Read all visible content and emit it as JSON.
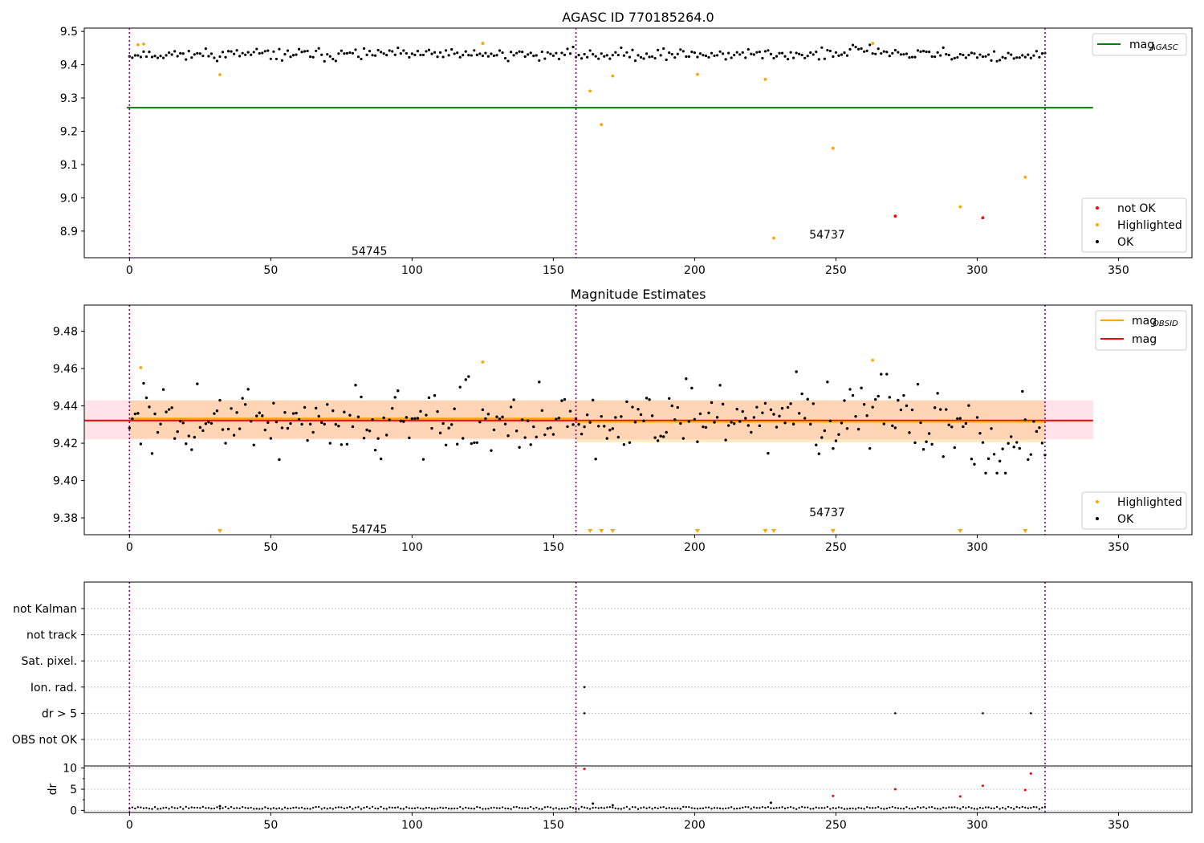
{
  "chart_data": [
    {
      "type": "scatter",
      "title": "AGASC ID 770185264.0",
      "xlim": [
        -16,
        376
      ],
      "ylim": [
        8.82,
        9.51
      ],
      "x_ticks": [
        0,
        50,
        100,
        150,
        200,
        250,
        300,
        350
      ],
      "y_ticks": [
        8.9,
        9.0,
        9.1,
        9.2,
        9.3,
        9.4,
        9.5
      ],
      "obsid_boundaries": [
        0,
        158,
        324
      ],
      "obsid_labels": [
        {
          "text": "54745",
          "x": 78,
          "y": 8.84
        },
        {
          "text": "54737",
          "x": 240,
          "y": 8.89
        }
      ],
      "lines": [
        {
          "name": "mag",
          "sub": "AGASC",
          "y": 9.271,
          "x_range": [
            0,
            341
          ],
          "color": "#008000"
        }
      ],
      "legend": {
        "placement": "upper-right (line) / lower-right (points)",
        "entries": [
          {
            "label": "not OK",
            "color": "#ff0000"
          },
          {
            "label": "Highlighted",
            "color": "#ffa500"
          },
          {
            "label": "OK",
            "color": "#000000"
          }
        ]
      },
      "series": [
        {
          "name": "Highlighted",
          "color": "#ffa500",
          "points": [
            [
              3,
              9.46
            ],
            [
              5,
              9.462
            ],
            [
              32,
              9.37
            ],
            [
              125,
              9.464
            ],
            [
              163,
              9.321
            ],
            [
              167,
              9.22
            ],
            [
              171,
              9.366
            ],
            [
              201,
              9.371
            ],
            [
              225,
              9.356
            ],
            [
              228,
              8.879
            ],
            [
              249,
              9.149
            ],
            [
              263,
              9.464
            ],
            [
              294,
              8.973
            ],
            [
              317,
              9.062
            ]
          ]
        },
        {
          "name": "not OK",
          "color": "#ff0000",
          "points": [
            [
              271,
              8.945
            ],
            [
              302,
              8.94
            ]
          ]
        }
      ],
      "ok_series_note": "about 320 OK points clustered around 9.43 (range ~9.41–9.46)"
    },
    {
      "type": "scatter",
      "title": "Magnitude Estimates",
      "xlim": [
        -16,
        376
      ],
      "ylim": [
        9.371,
        9.494
      ],
      "x_ticks": [
        0,
        50,
        100,
        150,
        200,
        250,
        300,
        350
      ],
      "y_ticks": [
        9.38,
        9.4,
        9.42,
        9.44,
        9.46,
        9.48
      ],
      "obsid_boundaries": [
        0,
        158,
        324
      ],
      "obsid_labels": [
        {
          "text": "54745",
          "x": 78,
          "y": 9.374
        },
        {
          "text": "54737",
          "x": 240,
          "y": 9.383
        }
      ],
      "lines": [
        {
          "name": "mag",
          "sub": "OBSID",
          "color": "#ffa500",
          "segments": [
            {
              "x": [
                0,
                158
              ],
              "y": 9.4332
            },
            {
              "x": [
                158,
                324
              ],
              "y": 9.4315
            }
          ]
        },
        {
          "name": "mag",
          "sub": "",
          "color": "#ff0000",
          "segments": [
            {
              "x": [
                -16,
                341
              ],
              "y": 9.4322
            }
          ]
        }
      ],
      "bands": [
        {
          "color": "#ffc0cb",
          "x": [
            -16,
            341
          ],
          "y": [
            9.422,
            9.443
          ]
        },
        {
          "color": "#ffa500",
          "x": [
            0,
            158
          ],
          "y": [
            9.4225,
            9.443
          ]
        },
        {
          "color": "#ffa500",
          "x": [
            158,
            324
          ],
          "y": [
            9.4205,
            9.443
          ]
        }
      ],
      "legend": {
        "placement": "upper-right (lines) / lower-right (points)",
        "entries": [
          {
            "label": "Highlighted",
            "color": "#ffa500"
          },
          {
            "label": "OK",
            "color": "#000000"
          }
        ]
      },
      "series": [
        {
          "name": "Highlighted",
          "color": "#ffa500",
          "points": [
            [
              4,
              9.4605
            ],
            [
              125,
              9.4635
            ],
            [
              263,
              9.4645
            ]
          ]
        },
        {
          "name": "Highlighted (below axis)",
          "color": "#ffa500",
          "marker": "triangle-down",
          "x": [
            32,
            163,
            167,
            171,
            201,
            225,
            228,
            249,
            294,
            317
          ]
        }
      ],
      "ok_series_note": "about 320 OK points scattered between ~9.405 and ~9.458"
    },
    {
      "type": "scatter",
      "title": "",
      "xlim": [
        -16,
        376
      ],
      "x_ticks": [
        0,
        50,
        100,
        150,
        200,
        250,
        300,
        350
      ],
      "obsid_boundaries": [
        0,
        158,
        324
      ],
      "flag_categories": [
        "not Kalman",
        "not track",
        "Sat. pixel.",
        "Ion. rad.",
        "dr > 5",
        "OBS not OK"
      ],
      "flag_points": [
        {
          "category": "Ion. rad.",
          "x": [
            161
          ]
        },
        {
          "category": "dr > 5",
          "x": [
            161,
            271,
            302,
            319
          ]
        }
      ],
      "dr_axis": {
        "ylabel": "dr",
        "ylim": [
          -0.5,
          10.5
        ],
        "y_ticks": [
          0,
          5,
          10
        ]
      },
      "dr_outliers": [
        {
          "x": 161,
          "y": 9.8,
          "color": "#ff0000"
        },
        {
          "x": 249,
          "y": 3.4,
          "color": "#ff0000"
        },
        {
          "x": 271,
          "y": 5.0,
          "color": "#ff0000"
        },
        {
          "x": 294,
          "y": 3.3,
          "color": "#ff0000"
        },
        {
          "x": 302,
          "y": 5.8,
          "color": "#ff0000"
        },
        {
          "x": 317,
          "y": 4.8,
          "color": "#ff0000"
        },
        {
          "x": 319,
          "y": 8.7,
          "color": "#ff0000"
        },
        {
          "x": 164,
          "y": 1.6,
          "color": "#000000"
        },
        {
          "x": 171,
          "y": 1.2,
          "color": "#000000"
        },
        {
          "x": 227,
          "y": 1.8,
          "color": "#000000"
        },
        {
          "x": 32,
          "y": 1.0,
          "color": "#000000"
        }
      ],
      "ok_series_note": "dr values for remaining samples lie between ~0.2 and ~0.9"
    }
  ]
}
